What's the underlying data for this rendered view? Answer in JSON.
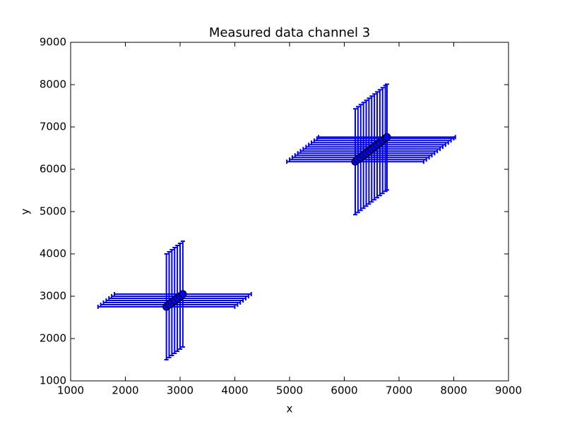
{
  "chart_data": {
    "type": "scatter",
    "title": "Measured data channel 3",
    "x_label": "x",
    "y_label": "y",
    "x": [
      2750,
      2800,
      2850,
      2900,
      2950,
      3000,
      3050,
      6200,
      6250,
      6300,
      6350,
      6400,
      6450,
      6500,
      6550,
      6600,
      6650,
      6700,
      6750,
      6780
    ],
    "values": [
      2750,
      2800,
      2850,
      2900,
      2950,
      3000,
      3050,
      6180,
      6230,
      6280,
      6330,
      6380,
      6430,
      6480,
      6530,
      6580,
      6630,
      6680,
      6730,
      6760
    ],
    "xerr": [
      1250,
      1250,
      1250,
      1250,
      1250,
      1250,
      1250,
      1250,
      1250,
      1250,
      1250,
      1250,
      1250,
      1250,
      1250,
      1250,
      1250,
      1250,
      1250,
      1250
    ],
    "yerr": [
      1250,
      1250,
      1250,
      1250,
      1250,
      1250,
      1250,
      1250,
      1250,
      1250,
      1250,
      1250,
      1250,
      1250,
      1250,
      1250,
      1250,
      1250,
      1250,
      1250
    ],
    "color": "#0000ff",
    "marker_edge_color": "#000000",
    "xlim": [
      1000,
      9000
    ],
    "xticks": [
      1000,
      2000,
      3000,
      4000,
      5000,
      6000,
      7000,
      8000,
      9000
    ],
    "ylim": [
      1000,
      9000
    ],
    "yticks": [
      1000,
      2000,
      3000,
      4000,
      5000,
      6000,
      7000,
      8000,
      9000
    ],
    "grid": false
  }
}
